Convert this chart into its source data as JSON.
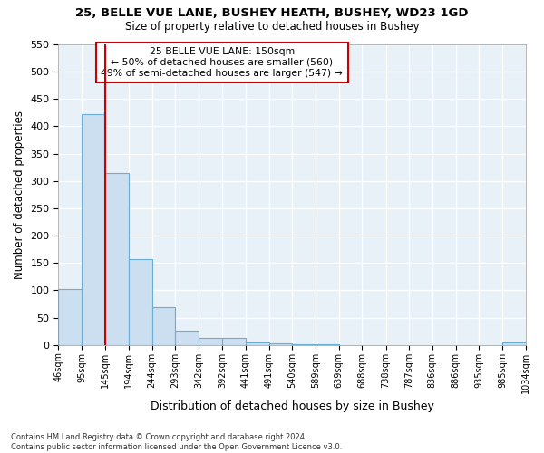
{
  "title1": "25, BELLE VUE LANE, BUSHEY HEATH, BUSHEY, WD23 1GD",
  "title2": "Size of property relative to detached houses in Bushey",
  "xlabel": "Distribution of detached houses by size in Bushey",
  "ylabel": "Number of detached properties",
  "footnote": "Contains HM Land Registry data © Crown copyright and database right 2024.\nContains public sector information licensed under the Open Government Licence v3.0.",
  "bin_edges": [
    46,
    95,
    145,
    194,
    244,
    293,
    342,
    392,
    441,
    491,
    540,
    589,
    639,
    688,
    738,
    787,
    836,
    886,
    935,
    985,
    1034
  ],
  "bar_heights": [
    102,
    422,
    315,
    157,
    70,
    26,
    13,
    13,
    5,
    3,
    2,
    1,
    0,
    0,
    0,
    0,
    0,
    0,
    0,
    5
  ],
  "bar_color": "#ccdff0",
  "bar_edge_color": "#6aaed6",
  "redline_x": 145,
  "annotation_lines": [
    "25 BELLE VUE LANE: 150sqm",
    "← 50% of detached houses are smaller (560)",
    "49% of semi-detached houses are larger (547) →"
  ],
  "ylim": [
    0,
    550
  ],
  "yticks": [
    0,
    50,
    100,
    150,
    200,
    250,
    300,
    350,
    400,
    450,
    500,
    550
  ],
  "bg_color": "#e8f0f8",
  "grid_color": "#ffffff",
  "fig_bg_color": "#ffffff",
  "annotation_box_color": "#ffffff",
  "annotation_box_edge": "#cc0000",
  "redline_color": "#cc0000"
}
